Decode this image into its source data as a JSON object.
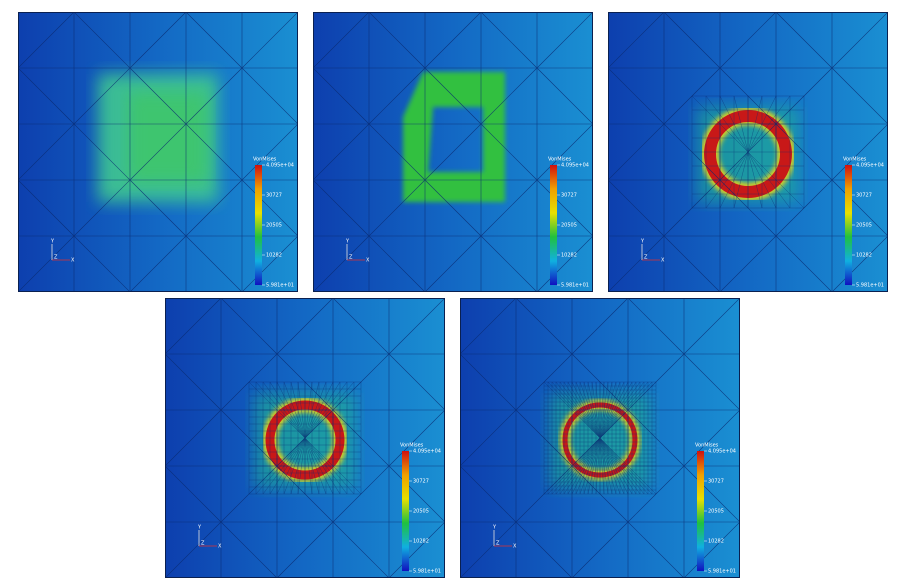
{
  "panels": [
    {
      "colorbar": {
        "title": "VonMises",
        "labels": [
          "4.095e+04",
          "30727",
          "20505",
          "10282",
          "5.981e+01"
        ]
      },
      "axes": {
        "y": "Y",
        "z": "Z",
        "x": "X"
      }
    },
    {
      "colorbar": {
        "title": "VonMises",
        "labels": [
          "4.095e+04",
          "30727",
          "20505",
          "10282",
          "5.981e+01"
        ]
      },
      "axes": {
        "y": "Y",
        "z": "Z",
        "x": "X"
      }
    },
    {
      "colorbar": {
        "title": "VonMises",
        "labels": [
          "4.095e+04",
          "30727",
          "20505",
          "10282",
          "5.981e+01"
        ]
      },
      "axes": {
        "y": "Y",
        "z": "Z",
        "x": "X"
      }
    },
    {
      "colorbar": {
        "title": "VonMises",
        "labels": [
          "4.095e+04",
          "30727",
          "20505",
          "10282",
          "5.981e+01"
        ]
      },
      "axes": {
        "y": "Y",
        "z": "Z",
        "x": "X"
      }
    },
    {
      "colorbar": {
        "title": "VonMises",
        "labels": [
          "4.095e+04",
          "30727",
          "20505",
          "10282",
          "5.981e+01"
        ]
      },
      "axes": {
        "y": "Y",
        "z": "Z",
        "x": "X"
      }
    }
  ]
}
